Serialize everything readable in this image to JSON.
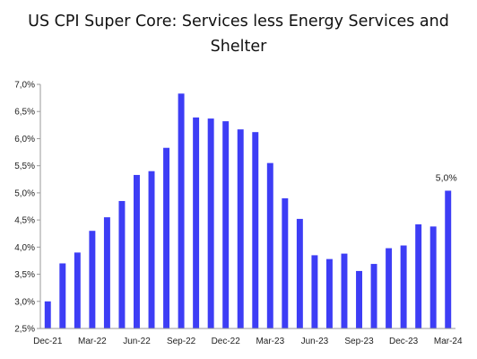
{
  "chart_data": {
    "type": "bar",
    "title": "US CPI Super Core: Services less Energy Services and Shelter",
    "xlabel": "",
    "ylabel": "",
    "ylim": [
      2.5,
      7.0
    ],
    "y_ticks": [
      "2,5%",
      "3,0%",
      "3,5%",
      "4,0%",
      "4,5%",
      "5,0%",
      "5,5%",
      "6,0%",
      "6,5%",
      "7,0%"
    ],
    "x_tick_labels": [
      "Dec-21",
      "Mar-22",
      "Jun-22",
      "Sep-22",
      "Dec-22",
      "Mar-23",
      "Jun-23",
      "Sep-23",
      "Dec-23",
      "Mar-24"
    ],
    "categories": [
      "Dec-21",
      "Jan-22",
      "Feb-22",
      "Mar-22",
      "Apr-22",
      "May-22",
      "Jun-22",
      "Jul-22",
      "Aug-22",
      "Sep-22",
      "Oct-22",
      "Nov-22",
      "Dec-22",
      "Jan-23",
      "Feb-23",
      "Mar-23",
      "Apr-23",
      "May-23",
      "Jun-23",
      "Jul-23",
      "Aug-23",
      "Sep-23",
      "Oct-23",
      "Nov-23",
      "Dec-23",
      "Jan-24",
      "Feb-24",
      "Mar-24"
    ],
    "values": [
      3.0,
      3.7,
      3.9,
      4.3,
      4.55,
      4.85,
      5.33,
      5.4,
      5.83,
      6.83,
      6.39,
      6.37,
      6.32,
      6.17,
      6.12,
      5.55,
      4.9,
      4.52,
      3.85,
      3.78,
      3.88,
      3.56,
      3.69,
      3.98,
      4.03,
      4.42,
      4.38,
      5.04
    ],
    "data_labels": [
      {
        "category": "Mar-24",
        "text": "5,0%"
      }
    ],
    "grid": false,
    "legend": "none",
    "colors": {
      "bar": "#3d3df5",
      "axis": "#9a9a9a",
      "text": "#222222"
    }
  }
}
